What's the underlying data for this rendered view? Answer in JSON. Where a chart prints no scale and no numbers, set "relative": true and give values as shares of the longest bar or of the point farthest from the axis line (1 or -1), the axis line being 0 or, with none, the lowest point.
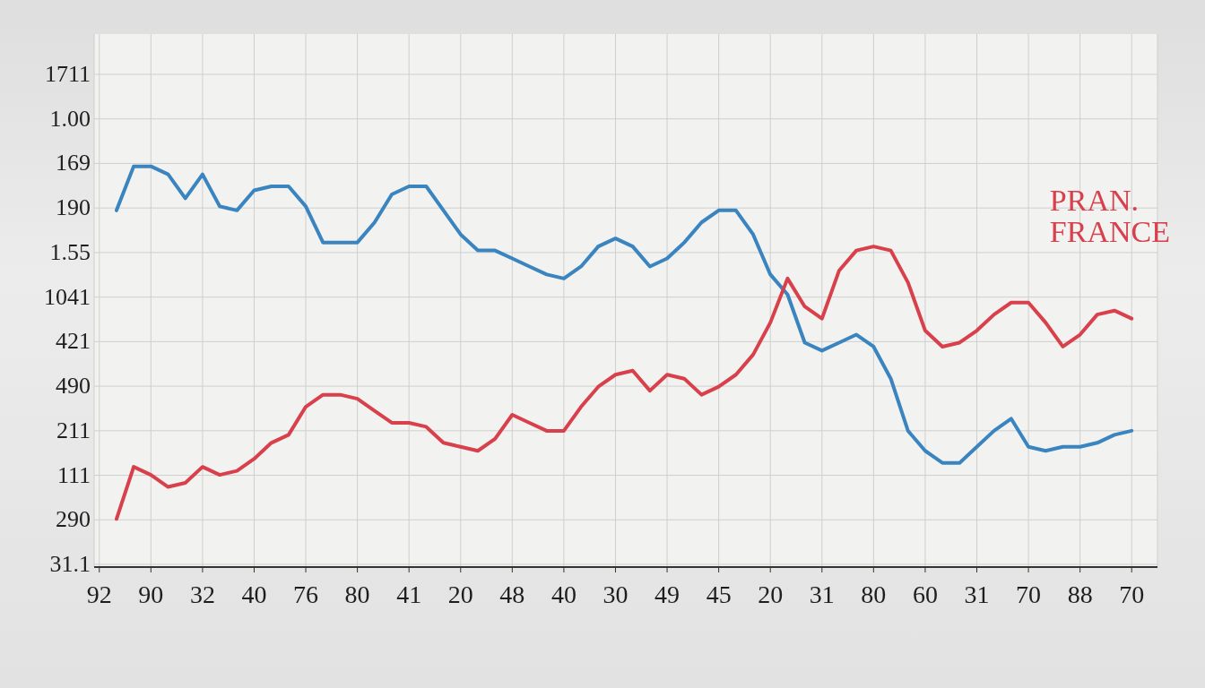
{
  "chart_data": {
    "type": "line",
    "relative": true,
    "grid": true,
    "categories": [
      "92",
      null,
      null,
      "90",
      null,
      null,
      "32",
      null,
      null,
      "40",
      null,
      null,
      "76",
      null,
      null,
      "80",
      null,
      null,
      "41",
      null,
      null,
      "20",
      null,
      null,
      "48",
      null,
      null,
      "40",
      null,
      null,
      "30",
      null,
      null,
      "49",
      null,
      null,
      "45",
      null,
      null,
      "20",
      null,
      null,
      "31",
      null,
      null,
      "80",
      null,
      null,
      "60",
      null,
      null,
      "31",
      null,
      null,
      "70",
      null,
      null,
      "88",
      null,
      null,
      "70"
    ],
    "annotations": [
      "1711",
      "1.00",
      "169",
      "190",
      "1.55",
      "1041",
      "421",
      "490",
      "211",
      "111",
      "290",
      "31.1"
    ],
    "series": [
      {
        "color": "#3a84c0",
        "values": [
          null,
          0.89,
          1,
          1,
          0.98,
          0.92,
          0.98,
          0.9,
          0.89,
          0.94,
          0.95,
          0.95,
          0.9,
          0.81,
          0.81,
          0.81,
          0.86,
          0.93,
          0.95,
          0.95,
          0.89,
          0.83,
          0.79,
          0.79,
          0.77,
          0.75,
          0.73,
          0.72,
          0.75,
          0.8,
          0.82,
          0.8,
          0.75,
          0.77,
          0.81,
          0.86,
          0.89,
          0.89,
          0.83,
          0.73,
          0.68,
          0.56,
          0.54,
          0.56,
          0.58,
          0.55,
          0.47,
          0.34,
          0.29,
          0.26,
          0.26,
          0.3,
          0.34,
          0.37,
          0.3,
          0.29,
          0.3,
          0.3,
          0.31,
          0.33,
          0.34
        ]
      },
      {
        "name": "PRAN. FRANCE",
        "color": "#d8404c",
        "values": [
          null,
          0.12,
          0.25,
          0.23,
          0.2,
          0.21,
          0.25,
          0.23,
          0.24,
          0.27,
          0.31,
          0.33,
          0.4,
          0.43,
          0.43,
          0.42,
          0.39,
          0.36,
          0.36,
          0.35,
          0.31,
          0.3,
          0.29,
          0.32,
          0.38,
          0.36,
          0.34,
          0.34,
          0.4,
          0.45,
          0.48,
          0.49,
          0.44,
          0.48,
          0.47,
          0.43,
          0.45,
          0.48,
          0.53,
          0.61,
          0.72,
          0.65,
          0.62,
          0.74,
          0.79,
          0.8,
          0.79,
          0.71,
          0.59,
          0.55,
          0.56,
          0.59,
          0.63,
          0.66,
          0.66,
          0.61,
          0.55,
          0.58,
          0.63,
          0.64,
          0.62
        ]
      }
    ]
  }
}
